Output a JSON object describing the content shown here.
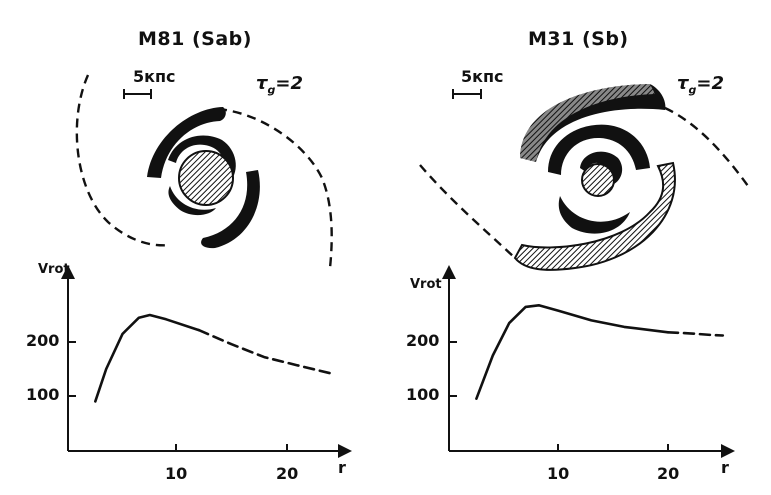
{
  "panels": [
    {
      "title": "M81 (Sab)",
      "scale_bar_label": "5кпс",
      "tau_symbol": "τ",
      "tau_subscript": "g",
      "tau_value": "=2",
      "rotation_curve": {
        "ylabel": "Vrot",
        "xlabel": "r",
        "y_ticks": [
          "200",
          "100"
        ],
        "x_ticks": [
          "10",
          "20"
        ]
      }
    },
    {
      "title": "M31 (Sb)",
      "scale_bar_label": "5кпс",
      "tau_symbol": "τ",
      "tau_subscript": "g",
      "tau_value": "=2",
      "rotation_curve": {
        "ylabel": "Vrot",
        "xlabel": "r",
        "y_ticks": [
          "200",
          "100"
        ],
        "x_ticks": [
          "10",
          "20"
        ]
      }
    }
  ],
  "chart_data": [
    {
      "type": "line",
      "title": "M81 (Sab)",
      "xlabel": "r",
      "ylabel": "Vrot",
      "xlim": [
        0,
        26
      ],
      "ylim": [
        0,
        320
      ],
      "grid": false,
      "series": [
        {
          "style": "solid",
          "x": [
            2.5,
            3.5,
            5,
            6.5,
            7.5,
            9,
            12
          ],
          "y": [
            90,
            150,
            215,
            245,
            250,
            242,
            222
          ]
        },
        {
          "style": "dashed",
          "x": [
            12,
            15,
            18,
            21,
            24.5
          ],
          "y": [
            222,
            196,
            172,
            157,
            140
          ]
        }
      ]
    },
    {
      "type": "line",
      "title": "M31 (Sb)",
      "xlabel": "r",
      "ylabel": "Vrot",
      "xlim": [
        0,
        26
      ],
      "ylim": [
        0,
        320
      ],
      "grid": false,
      "series": [
        {
          "style": "solid",
          "x": [
            2.5,
            4,
            5.5,
            7,
            8.2,
            10,
            13,
            16,
            20
          ],
          "y": [
            95,
            175,
            235,
            265,
            268,
            258,
            240,
            228,
            218
          ]
        },
        {
          "style": "dashed",
          "x": [
            20,
            22,
            24,
            25
          ],
          "y": [
            218,
            216,
            213,
            212
          ]
        }
      ]
    }
  ]
}
